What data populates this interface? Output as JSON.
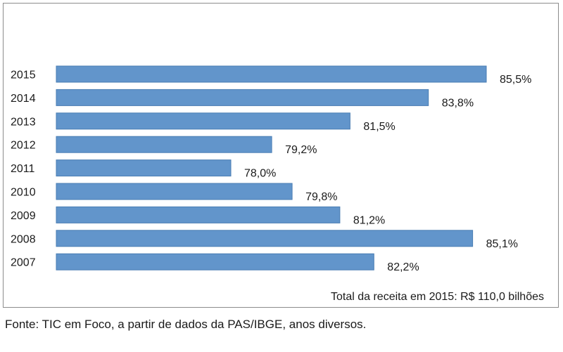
{
  "chart_data": {
    "type": "bar",
    "orientation": "horizontal",
    "categories": [
      "2015",
      "2014",
      "2013",
      "2012",
      "2011",
      "2010",
      "2009",
      "2008",
      "2007"
    ],
    "values": [
      85.5,
      83.8,
      81.5,
      79.2,
      78.0,
      79.8,
      81.2,
      85.1,
      82.2
    ],
    "data_labels": [
      "85,5%",
      "83,8%",
      "81,5%",
      "79,2%",
      "78,0%",
      "79,8%",
      "81,2%",
      "85,1%",
      "82,2%"
    ],
    "title": "",
    "xlabel": "",
    "ylabel": "",
    "annotation": "Total da receita em 2015: R$ 110,0 bilhões",
    "bar_color": "#6295cb",
    "bar_edge_color": "#4a7db3",
    "grid": false,
    "legend": "none"
  },
  "source_note": "Fonte: TIC em Foco, a partir de dados da PAS/IBGE, anos diversos."
}
